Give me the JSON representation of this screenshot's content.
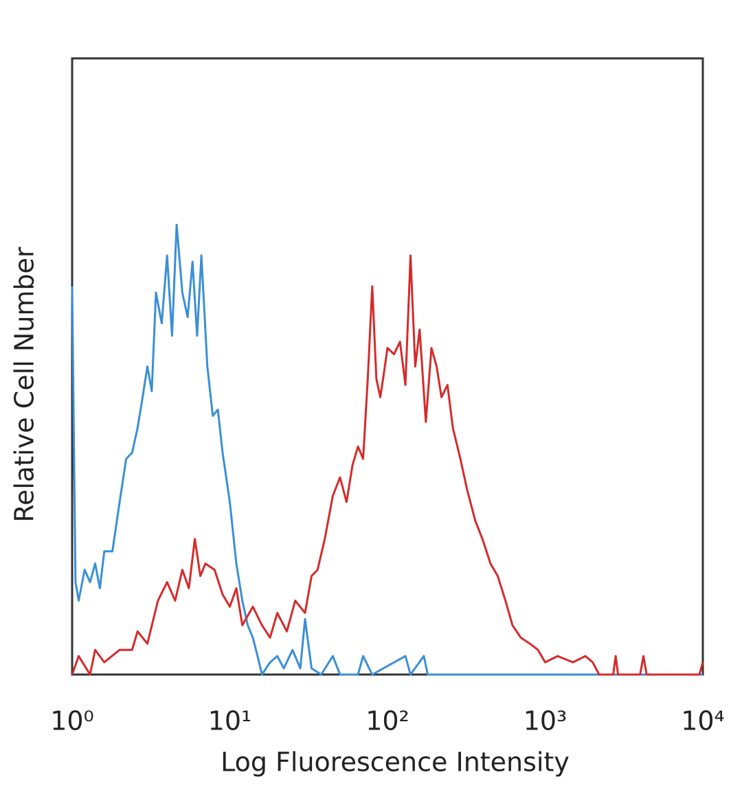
{
  "chart_data": {
    "type": "line",
    "x_label": "Log Fluorescence Intensity",
    "y_label": "Relative Cell Number",
    "xscale": "log",
    "xlim": [
      1,
      10000
    ],
    "xticks": [
      {
        "value": 1,
        "label": "10⁰"
      },
      {
        "value": 10,
        "label": "10¹"
      },
      {
        "value": 100,
        "label": "10²"
      },
      {
        "value": 1000,
        "label": "10³"
      },
      {
        "value": 10000,
        "label": "10⁴"
      }
    ],
    "ylim": [
      0,
      100
    ],
    "series": [
      {
        "color": "#3a8fd6",
        "x": [
          1.0,
          1.05,
          1.1,
          1.2,
          1.3,
          1.4,
          1.5,
          1.6,
          1.8,
          2.0,
          2.2,
          2.4,
          2.6,
          2.8,
          3.0,
          3.2,
          3.4,
          3.7,
          4.0,
          4.3,
          4.6,
          5.0,
          5.4,
          5.8,
          6.2,
          6.6,
          7.2,
          7.8,
          8.4,
          9.0,
          10,
          11,
          12,
          13,
          14,
          15,
          16,
          18,
          20,
          22,
          25,
          28,
          30,
          33,
          38,
          45,
          50,
          65,
          70,
          80,
          130,
          140,
          170,
          180,
          10000
        ],
        "values": [
          63,
          15,
          12,
          17,
          15,
          18,
          14,
          20,
          20,
          28,
          35,
          36,
          40,
          45,
          50,
          46,
          62,
          57,
          68,
          55,
          73,
          62,
          58,
          67,
          55,
          68,
          50,
          42,
          43,
          36,
          28,
          18,
          12,
          8,
          6,
          3,
          0,
          2,
          3,
          1,
          4,
          1,
          9,
          1,
          0,
          3,
          0,
          0,
          3,
          0,
          3,
          0,
          3,
          0,
          0
        ]
      },
      {
        "color": "#d62a2a",
        "x": [
          1.0,
          1.1,
          1.3,
          1.4,
          1.6,
          2.0,
          2.4,
          2.6,
          3.0,
          3.5,
          4.0,
          4.5,
          5.0,
          5.5,
          6.0,
          6.5,
          7.0,
          8.0,
          9,
          10,
          11,
          12,
          14,
          16,
          18,
          20,
          23,
          26,
          30,
          33,
          36,
          40,
          45,
          50,
          55,
          60,
          65,
          70,
          75,
          80,
          85,
          90,
          95,
          100,
          110,
          120,
          130,
          140,
          150,
          160,
          175,
          190,
          205,
          220,
          240,
          260,
          290,
          320,
          360,
          400,
          450,
          500,
          560,
          620,
          700,
          800,
          900,
          1000,
          1200,
          1500,
          1800,
          2000,
          2200,
          2700,
          2800,
          2900,
          4000,
          4200,
          4400,
          9500,
          10000
        ],
        "values": [
          0,
          3,
          0,
          4,
          2,
          4,
          4,
          7,
          5,
          12,
          15,
          12,
          17,
          14,
          22,
          16,
          18,
          17,
          13,
          11,
          14,
          8,
          11,
          8,
          6,
          10,
          7,
          12,
          10,
          16,
          17,
          22,
          29,
          32,
          28,
          34,
          37,
          35,
          48,
          63,
          48,
          45,
          49,
          53,
          52,
          54,
          47,
          68,
          50,
          56,
          41,
          53,
          50,
          45,
          47,
          40,
          35,
          30,
          25,
          22,
          18,
          16,
          12,
          8,
          6,
          5,
          4,
          2,
          3,
          2,
          3,
          2,
          0,
          0,
          3,
          0,
          0,
          3,
          0,
          0,
          2
        ]
      }
    ]
  }
}
